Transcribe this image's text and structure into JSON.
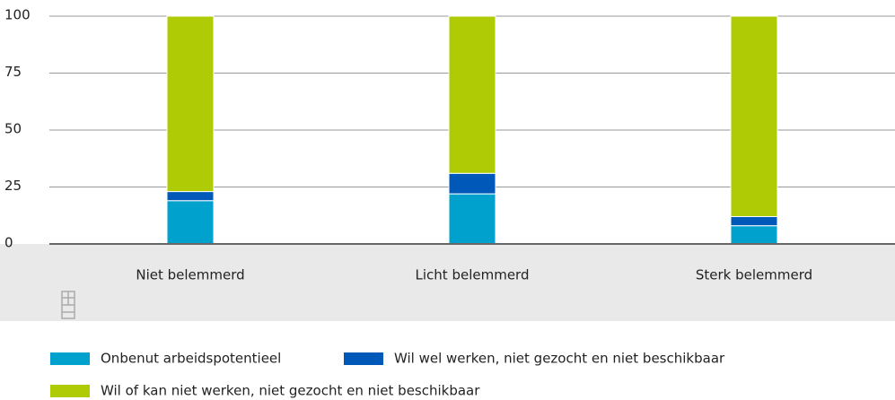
{
  "chart_data": {
    "type": "stacked_bar",
    "categories": [
      "Niet belemmerd",
      "Licht belemmerd",
      "Sterk belemmerd"
    ],
    "series": [
      {
        "name": "Onbenut arbeidspotentieel",
        "color": "#00a1cd",
        "values": [
          19,
          22,
          8
        ]
      },
      {
        "name": "Wil wel werken, niet gezocht en niet beschikbaar",
        "color": "#0058b8",
        "values": [
          4,
          9,
          4
        ]
      },
      {
        "name": "Wil of kan niet werken, niet gezocht en niet beschikbaar",
        "color": "#afcb05",
        "values": [
          77,
          69,
          88
        ]
      }
    ],
    "ylim": [
      0,
      100
    ],
    "yticks": [
      0,
      25,
      50,
      75,
      100
    ],
    "grid": true,
    "legend": "bottom"
  }
}
